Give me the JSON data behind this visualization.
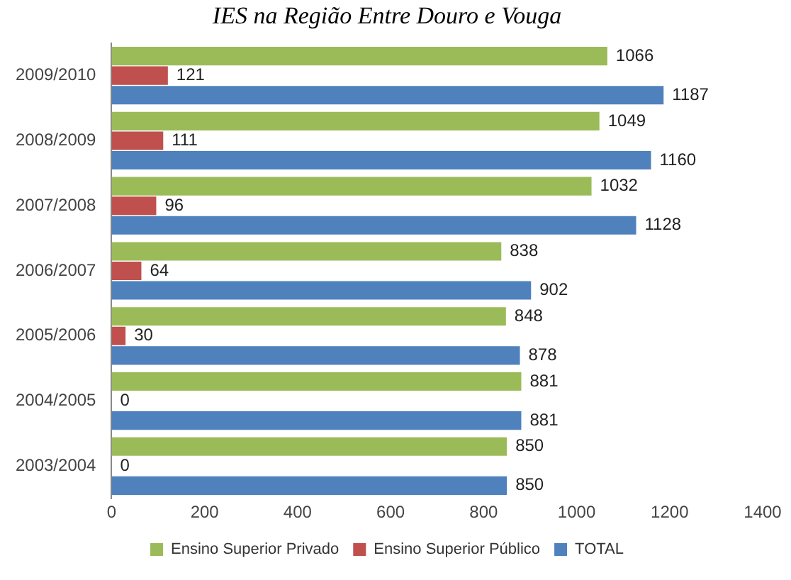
{
  "chart_data": {
    "type": "bar",
    "orientation": "horizontal",
    "title": "IES na Região Entre Douro e Vouga",
    "categories": [
      "2009/2010",
      "2008/2009",
      "2007/2008",
      "2006/2007",
      "2005/2006",
      "2004/2005",
      "2003/2004"
    ],
    "series": [
      {
        "name": "Ensino Superior Privado",
        "color": "#9bbb59",
        "values": [
          1066,
          1049,
          1032,
          838,
          848,
          881,
          850
        ]
      },
      {
        "name": "Ensino Superior Público",
        "color": "#c0504d",
        "values": [
          121,
          111,
          96,
          64,
          30,
          0,
          0
        ]
      },
      {
        "name": "TOTAL",
        "color": "#4f81bd",
        "values": [
          1187,
          1160,
          1128,
          902,
          878,
          881,
          850
        ]
      }
    ],
    "xlim": [
      0,
      1400
    ],
    "xticks": [
      0,
      200,
      400,
      600,
      800,
      1000,
      1200,
      1400
    ],
    "grid": false,
    "legend": "bottom",
    "data_labels": true
  }
}
